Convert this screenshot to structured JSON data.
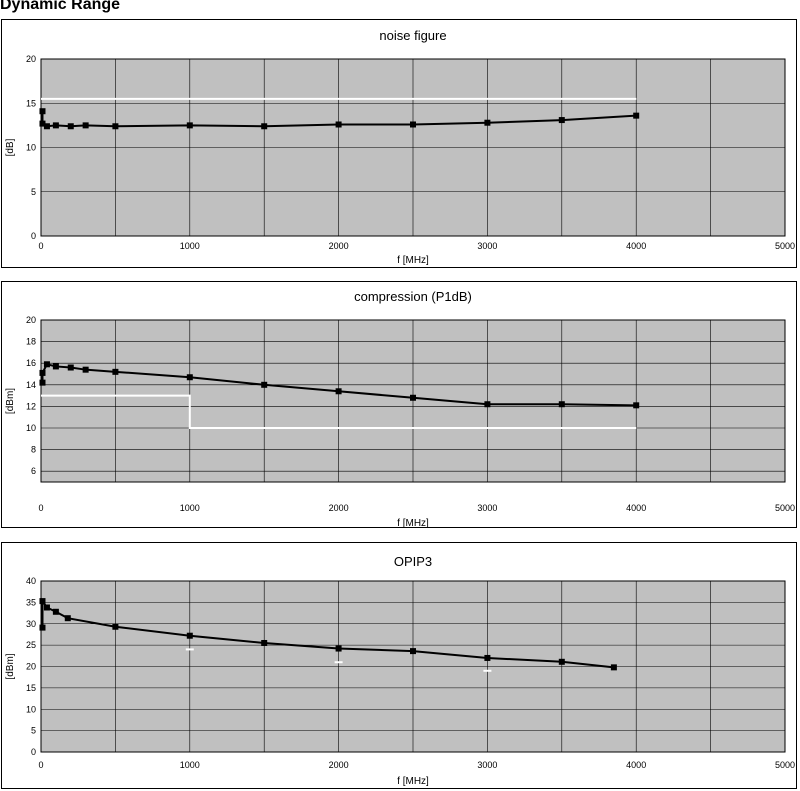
{
  "page_title": "Dynamic Range",
  "chart_data": [
    {
      "type": "line",
      "title": "noise figure",
      "xlabel": "f [MHz]",
      "ylabel": "[dB]",
      "xlim": [
        0,
        5000
      ],
      "ylim": [
        0,
        20
      ],
      "xticks": [
        0,
        1000,
        2000,
        3000,
        4000,
        5000
      ],
      "yticks": [
        0,
        5,
        10,
        15,
        20
      ],
      "grid": true,
      "series": [
        {
          "values": [
            [
              10,
              14.1
            ],
            [
              10,
              12.7
            ],
            [
              40,
              12.4
            ],
            [
              100,
              12.5
            ],
            [
              200,
              12.4
            ],
            [
              300,
              12.5
            ],
            [
              500,
              12.4
            ],
            [
              1000,
              12.5
            ],
            [
              1500,
              12.4
            ],
            [
              2000,
              12.6
            ],
            [
              2500,
              12.6
            ],
            [
              3000,
              12.8
            ],
            [
              3500,
              13.1
            ],
            [
              4000,
              13.6
            ]
          ]
        }
      ],
      "limit_lines": [
        [
          [
            0,
            15.5
          ],
          [
            4000,
            15.5
          ]
        ]
      ]
    },
    {
      "type": "line",
      "title": "compression (P1dB)",
      "xlabel": "f [MHz]",
      "ylabel": "[dBm]",
      "xlim": [
        0,
        5000
      ],
      "ylim": [
        5,
        20
      ],
      "xticks": [
        0,
        1000,
        2000,
        3000,
        4000,
        5000
      ],
      "yticks": [
        6,
        8,
        10,
        12,
        14,
        16,
        18,
        20
      ],
      "grid": true,
      "series": [
        {
          "values": [
            [
              10,
              14.2
            ],
            [
              10,
              15.1
            ],
            [
              40,
              15.9
            ],
            [
              100,
              15.7
            ],
            [
              200,
              15.6
            ],
            [
              300,
              15.4
            ],
            [
              500,
              15.2
            ],
            [
              1000,
              14.7
            ],
            [
              1500,
              14.0
            ],
            [
              2000,
              13.4
            ],
            [
              2500,
              12.8
            ],
            [
              3000,
              12.2
            ],
            [
              3500,
              12.2
            ],
            [
              4000,
              12.1
            ]
          ]
        }
      ],
      "limit_lines": [
        [
          [
            0,
            13
          ],
          [
            1000,
            13
          ],
          [
            1000,
            10
          ],
          [
            4000,
            10
          ]
        ]
      ]
    },
    {
      "type": "line",
      "title": "OPIP3",
      "xlabel": "f [MHz]",
      "ylabel": "[dBm]",
      "xlim": [
        0,
        5000
      ],
      "ylim": [
        0,
        40
      ],
      "xticks": [
        0,
        1000,
        2000,
        3000,
        4000,
        5000
      ],
      "yticks": [
        0,
        5,
        10,
        15,
        20,
        25,
        30,
        35,
        40
      ],
      "grid": true,
      "series": [
        {
          "values": [
            [
              10,
              29.1
            ],
            [
              10,
              35.3
            ],
            [
              40,
              33.8
            ],
            [
              100,
              32.8
            ],
            [
              180,
              31.3
            ],
            [
              500,
              29.3
            ],
            [
              1000,
              27.2
            ],
            [
              1500,
              25.5
            ],
            [
              2000,
              24.2
            ],
            [
              2500,
              23.6
            ],
            [
              3000,
              22.0
            ],
            [
              3500,
              21.1
            ],
            [
              3850,
              19.8
            ]
          ]
        }
      ],
      "limit_marks": [
        [
          1000,
          24
        ],
        [
          2000,
          21
        ],
        [
          3000,
          19
        ]
      ]
    }
  ]
}
